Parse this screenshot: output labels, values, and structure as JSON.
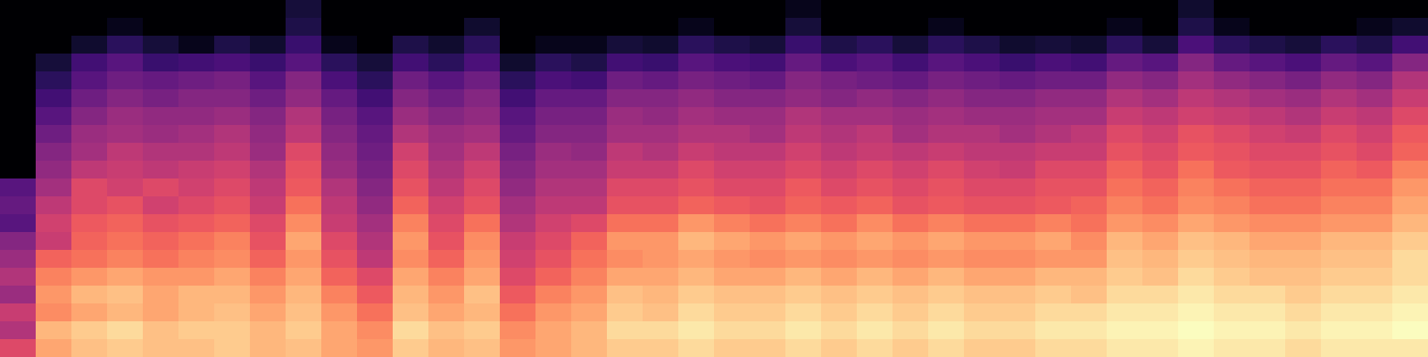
{
  "chart_data": {
    "type": "heatmap",
    "color": "magma",
    "tick_labels": false,
    "cells": [
      [
        0,
        0,
        0,
        0,
        0,
        0,
        0,
        0,
        10,
        0,
        0,
        0,
        0,
        0,
        0,
        0,
        0,
        0,
        0,
        0,
        0,
        0,
        5,
        0,
        0,
        0,
        0,
        0,
        0,
        0,
        0,
        0,
        0,
        8,
        0,
        0,
        0,
        0,
        0,
        0
      ],
      [
        0,
        0,
        0,
        5,
        0,
        0,
        0,
        0,
        12,
        0,
        0,
        0,
        0,
        8,
        0,
        0,
        0,
        0,
        0,
        5,
        0,
        0,
        10,
        0,
        0,
        0,
        5,
        0,
        0,
        0,
        0,
        5,
        0,
        12,
        5,
        0,
        0,
        0,
        5,
        8
      ],
      [
        0,
        0,
        8,
        15,
        10,
        5,
        12,
        8,
        18,
        5,
        0,
        12,
        8,
        15,
        0,
        5,
        5,
        10,
        8,
        15,
        12,
        10,
        18,
        12,
        15,
        10,
        15,
        12,
        8,
        10,
        8,
        15,
        10,
        22,
        15,
        12,
        10,
        15,
        12,
        20
      ],
      [
        0,
        10,
        20,
        25,
        18,
        20,
        22,
        18,
        25,
        15,
        10,
        20,
        15,
        22,
        8,
        15,
        12,
        20,
        18,
        25,
        22,
        20,
        28,
        22,
        25,
        20,
        25,
        22,
        18,
        22,
        20,
        28,
        25,
        35,
        28,
        25,
        22,
        28,
        25,
        35
      ],
      [
        0,
        15,
        25,
        30,
        28,
        30,
        32,
        25,
        35,
        22,
        15,
        30,
        25,
        30,
        15,
        22,
        20,
        30,
        28,
        32,
        30,
        28,
        35,
        32,
        30,
        28,
        32,
        30,
        28,
        30,
        30,
        38,
        35,
        42,
        38,
        35,
        32,
        38,
        35,
        45
      ],
      [
        0,
        20,
        30,
        35,
        32,
        35,
        35,
        30,
        38,
        28,
        20,
        35,
        30,
        35,
        20,
        28,
        28,
        35,
        35,
        38,
        35,
        35,
        38,
        35,
        38,
        35,
        38,
        35,
        35,
        38,
        38,
        45,
        42,
        48,
        45,
        42,
        40,
        45,
        42,
        50
      ],
      [
        0,
        25,
        35,
        40,
        38,
        38,
        40,
        35,
        45,
        32,
        25,
        40,
        35,
        38,
        25,
        32,
        32,
        40,
        38,
        42,
        40,
        40,
        45,
        42,
        42,
        40,
        42,
        40,
        40,
        42,
        42,
        50,
        48,
        52,
        50,
        48,
        45,
        50,
        48,
        55
      ],
      [
        0,
        30,
        40,
        42,
        40,
        42,
        45,
        38,
        48,
        35,
        28,
        45,
        40,
        42,
        28,
        35,
        35,
        42,
        42,
        45,
        45,
        42,
        48,
        45,
        48,
        42,
        45,
        45,
        42,
        45,
        48,
        55,
        52,
        58,
        55,
        52,
        50,
        55,
        52,
        60
      ],
      [
        0,
        35,
        42,
        48,
        45,
        45,
        48,
        40,
        55,
        38,
        30,
        52,
        42,
        48,
        32,
        40,
        38,
        48,
        45,
        50,
        48,
        48,
        52,
        48,
        50,
        48,
        50,
        48,
        48,
        50,
        50,
        58,
        55,
        60,
        58,
        55,
        55,
        58,
        55,
        62
      ],
      [
        0,
        38,
        48,
        50,
        48,
        50,
        52,
        45,
        58,
        40,
        32,
        55,
        45,
        52,
        35,
        42,
        42,
        50,
        50,
        55,
        52,
        52,
        55,
        52,
        55,
        52,
        55,
        52,
        50,
        55,
        55,
        62,
        58,
        65,
        60,
        58,
        58,
        62,
        60,
        68
      ],
      [
        25,
        42,
        55,
        52,
        55,
        52,
        55,
        48,
        60,
        45,
        35,
        58,
        48,
        55,
        38,
        45,
        45,
        55,
        55,
        58,
        55,
        55,
        60,
        55,
        58,
        55,
        58,
        55,
        55,
        58,
        58,
        65,
        62,
        68,
        65,
        62,
        62,
        65,
        65,
        72
      ],
      [
        28,
        48,
        55,
        58,
        52,
        55,
        58,
        50,
        65,
        48,
        38,
        62,
        52,
        58,
        42,
        48,
        48,
        58,
        58,
        62,
        60,
        58,
        62,
        60,
        62,
        58,
        60,
        58,
        58,
        60,
        62,
        68,
        65,
        70,
        68,
        65,
        65,
        68,
        68,
        75
      ],
      [
        25,
        52,
        60,
        62,
        58,
        60,
        62,
        55,
        70,
        50,
        42,
        68,
        55,
        65,
        45,
        52,
        55,
        65,
        65,
        72,
        68,
        65,
        68,
        65,
        70,
        65,
        68,
        65,
        65,
        68,
        65,
        72,
        70,
        75,
        72,
        70,
        70,
        72,
        72,
        78
      ],
      [
        35,
        50,
        62,
        65,
        62,
        65,
        68,
        58,
        75,
        55,
        45,
        72,
        58,
        70,
        50,
        55,
        62,
        72,
        72,
        78,
        75,
        72,
        75,
        72,
        75,
        72,
        75,
        72,
        72,
        75,
        70,
        78,
        75,
        80,
        78,
        75,
        75,
        78,
        78,
        82
      ],
      [
        40,
        62,
        65,
        68,
        65,
        68,
        70,
        62,
        72,
        58,
        48,
        70,
        62,
        72,
        52,
        58,
        65,
        70,
        72,
        75,
        72,
        70,
        72,
        70,
        72,
        70,
        72,
        70,
        70,
        72,
        72,
        80,
        78,
        82,
        80,
        78,
        78,
        80,
        80,
        85
      ],
      [
        45,
        68,
        72,
        75,
        72,
        72,
        75,
        68,
        75,
        62,
        55,
        75,
        68,
        75,
        55,
        62,
        68,
        75,
        75,
        78,
        75,
        75,
        78,
        75,
        78,
        75,
        78,
        75,
        75,
        78,
        78,
        82,
        80,
        85,
        82,
        80,
        80,
        82,
        82,
        85
      ],
      [
        40,
        72,
        78,
        80,
        75,
        78,
        78,
        72,
        78,
        68,
        60,
        78,
        72,
        80,
        60,
        68,
        72,
        80,
        78,
        82,
        80,
        80,
        82,
        80,
        82,
        80,
        82,
        80,
        80,
        82,
        80,
        85,
        85,
        88,
        85,
        85,
        82,
        85,
        85,
        88
      ],
      [
        50,
        70,
        75,
        78,
        75,
        78,
        80,
        75,
        80,
        72,
        65,
        80,
        75,
        78,
        65,
        72,
        75,
        82,
        80,
        85,
        82,
        82,
        85,
        82,
        85,
        82,
        85,
        82,
        82,
        85,
        85,
        88,
        88,
        90,
        88,
        88,
        85,
        88,
        88,
        90
      ],
      [
        45,
        78,
        82,
        85,
        80,
        82,
        82,
        78,
        82,
        75,
        70,
        85,
        80,
        82,
        70,
        75,
        78,
        85,
        85,
        88,
        85,
        85,
        88,
        85,
        88,
        85,
        88,
        85,
        85,
        88,
        88,
        90,
        90,
        92,
        90,
        90,
        88,
        90,
        90,
        92
      ],
      [
        55,
        75,
        80,
        82,
        80,
        80,
        82,
        78,
        80,
        75,
        72,
        82,
        78,
        80,
        72,
        75,
        78,
        82,
        82,
        85,
        82,
        82,
        85,
        82,
        85,
        82,
        85,
        82,
        82,
        85,
        85,
        88,
        88,
        90,
        88,
        88,
        85,
        88,
        88,
        88
      ]
    ]
  }
}
